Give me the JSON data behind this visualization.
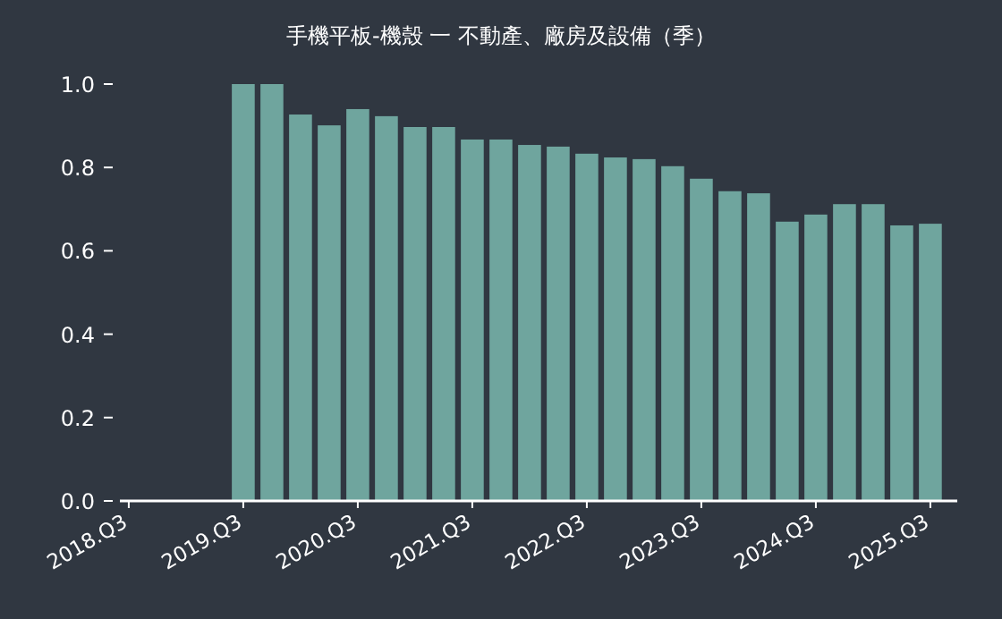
{
  "chart_data": {
    "type": "bar",
    "title": "手機平板-機殼 一 不動產、廠房及設備（季）",
    "color": "#6fa59e",
    "categories": [
      "2018.Q3",
      null,
      null,
      null,
      "2019.Q3",
      null,
      null,
      null,
      "2020.Q3",
      null,
      null,
      null,
      "2021.Q3",
      null,
      null,
      null,
      "2022.Q3",
      null,
      null,
      null,
      "2023.Q3",
      null,
      null,
      null,
      "2024.Q3",
      null,
      null,
      null,
      "2025.Q3"
    ],
    "values": [
      null,
      null,
      null,
      null,
      1.0,
      1.0,
      0.927,
      0.901,
      0.94,
      0.923,
      0.897,
      0.897,
      0.867,
      0.867,
      0.854,
      0.85,
      0.833,
      0.824,
      0.82,
      0.803,
      0.773,
      0.743,
      0.738,
      0.67,
      0.687,
      0.712,
      0.712,
      0.661,
      0.665
    ],
    "ylim": [
      0,
      1.0
    ],
    "yticks": [
      {
        "value": 0,
        "label": "0.0"
      },
      {
        "value": 0.2,
        "label": "0.2"
      },
      {
        "value": 0.4,
        "label": "0.4"
      },
      {
        "value": 0.6,
        "label": "0.6"
      },
      {
        "value": 0.8,
        "label": "0.8"
      },
      {
        "value": 1,
        "label": "1.0"
      }
    ]
  }
}
